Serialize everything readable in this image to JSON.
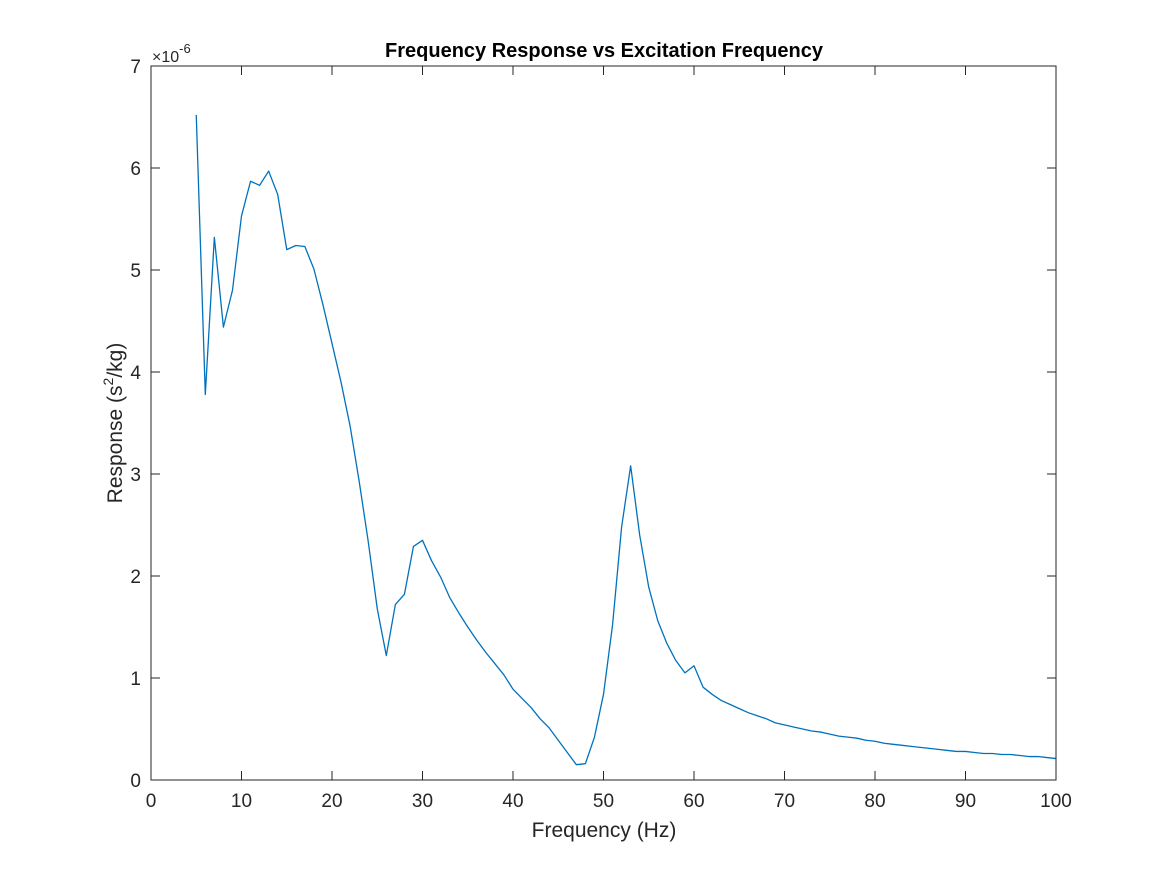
{
  "chart_data": {
    "type": "line",
    "title": "Frequency Response vs Excitation Frequency",
    "xlabel": "Frequency (Hz)",
    "ylabel": {
      "prefix": "Response (s",
      "superscript": "2",
      "suffix": "/kg)"
    },
    "y_exponent": {
      "base": "×10",
      "power": "-6"
    },
    "xlim": [
      0,
      100
    ],
    "ylim": [
      0,
      7
    ],
    "xticks": [
      0,
      10,
      20,
      30,
      40,
      50,
      60,
      70,
      80,
      90,
      100
    ],
    "yticks": [
      0,
      1,
      2,
      3,
      4,
      5,
      6,
      7
    ],
    "grid": false,
    "box": true,
    "series": [
      {
        "color": "#0072BD",
        "x": [
          5,
          6,
          7,
          8,
          9,
          10,
          11,
          12,
          13,
          14,
          15,
          16,
          17,
          18,
          19,
          20,
          21,
          22,
          23,
          24,
          25,
          26,
          27,
          28,
          29,
          30,
          31,
          32,
          33,
          34,
          35,
          36,
          37,
          38,
          39,
          40,
          41,
          42,
          43,
          44,
          45,
          46,
          47,
          48,
          49,
          50,
          51,
          52,
          53,
          54,
          55,
          56,
          57,
          58,
          59,
          60,
          61,
          62,
          63,
          64,
          65,
          66,
          67,
          68,
          69,
          70,
          71,
          72,
          73,
          74,
          75,
          76,
          77,
          78,
          79,
          80,
          81,
          82,
          83,
          84,
          85,
          86,
          87,
          88,
          89,
          90,
          91,
          92,
          93,
          94,
          95,
          96,
          97,
          98,
          99,
          100
        ],
        "y": [
          6.52,
          3.78,
          5.32,
          4.44,
          4.8,
          5.53,
          5.87,
          5.83,
          5.97,
          5.74,
          5.2,
          5.24,
          5.23,
          5.01,
          4.66,
          4.28,
          3.9,
          3.47,
          2.93,
          2.34,
          1.68,
          1.22,
          1.72,
          1.82,
          2.29,
          2.35,
          2.15,
          1.99,
          1.79,
          1.64,
          1.5,
          1.37,
          1.25,
          1.14,
          1.03,
          0.89,
          0.8,
          0.71,
          0.6,
          0.51,
          0.39,
          0.27,
          0.15,
          0.16,
          0.42,
          0.84,
          1.52,
          2.48,
          3.08,
          2.4,
          1.89,
          1.56,
          1.34,
          1.17,
          1.05,
          1.12,
          0.91,
          0.84,
          0.78,
          0.74,
          0.7,
          0.66,
          0.63,
          0.6,
          0.56,
          0.54,
          0.52,
          0.5,
          0.48,
          0.47,
          0.45,
          0.43,
          0.42,
          0.41,
          0.39,
          0.38,
          0.36,
          0.35,
          0.34,
          0.33,
          0.32,
          0.31,
          0.3,
          0.29,
          0.28,
          0.28,
          0.27,
          0.26,
          0.26,
          0.25,
          0.25,
          0.24,
          0.23,
          0.23,
          0.22,
          0.21
        ]
      }
    ]
  }
}
